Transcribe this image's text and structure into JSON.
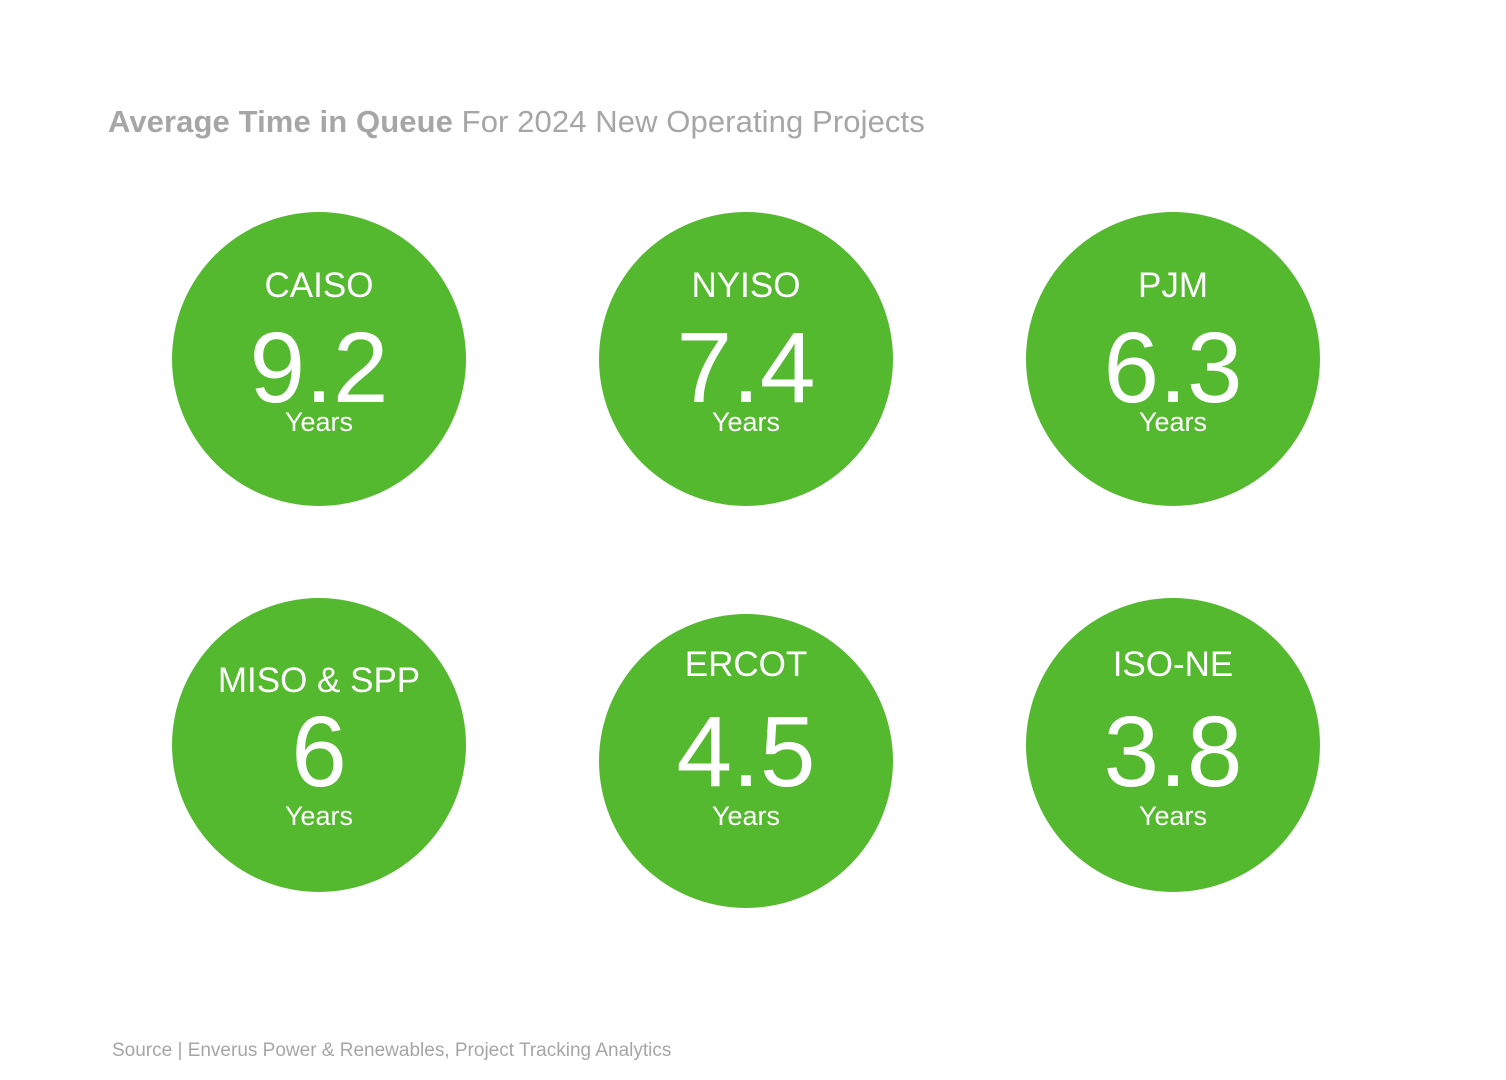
{
  "title": {
    "bold": "Average Time in Queue",
    "rest": "For 2024 New Operating Projects"
  },
  "source": "Source | Enverus Power & Renewables, Project Tracking Analytics",
  "colors": {
    "bubble": "#55b930",
    "text_muted": "#a6a6a6"
  },
  "chart_data": {
    "type": "bubble-kpi",
    "unit": "Years",
    "categories": [
      "CAISO",
      "NYISO",
      "PJM",
      "MISO & SPP",
      "ERCOT",
      "ISO-NE"
    ],
    "values": [
      "9.2",
      "7.4",
      "6.3",
      "6",
      "4.5",
      "3.8"
    ],
    "items": [
      {
        "region": "CAISO",
        "value": "9.2",
        "unit": "Years"
      },
      {
        "region": "NYISO",
        "value": "7.4",
        "unit": "Years"
      },
      {
        "region": "PJM",
        "value": "6.3",
        "unit": "Years"
      },
      {
        "region": "MISO & SPP",
        "value": "6",
        "unit": "Years"
      },
      {
        "region": "ERCOT",
        "value": "4.5",
        "unit": "Years"
      },
      {
        "region": "ISO-NE",
        "value": "3.8",
        "unit": "Years"
      }
    ]
  }
}
